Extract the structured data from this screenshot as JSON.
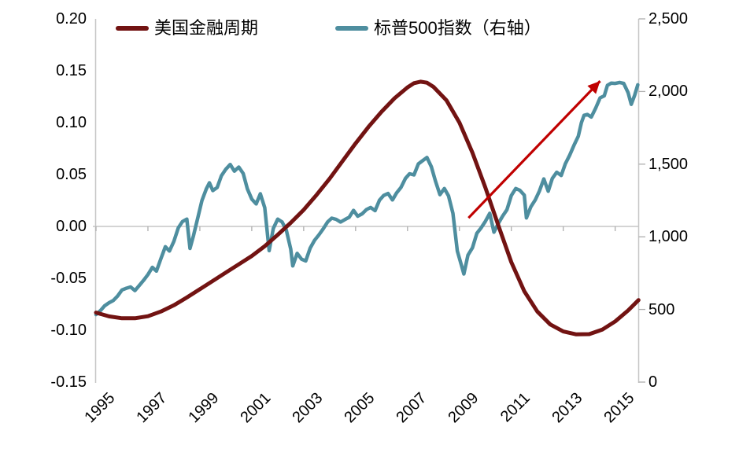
{
  "legend": {
    "position": "top",
    "series": [
      {
        "label": "美国金融周期",
        "color": "#721312"
      },
      {
        "label": "标普500指数（右轴）",
        "color": "#4E8E9F"
      }
    ]
  },
  "colors": {
    "background": "#ffffff",
    "axis_line": "#c6c6c6",
    "tick_mark": "#aeaeae",
    "text": "#000000",
    "financial_cycle_line": "#721312",
    "sp500_line": "#4E8E9F",
    "trend_arrow": "#C00000"
  },
  "chart_data": {
    "type": "line",
    "title": "",
    "xlabel": "",
    "ylabel_left": "",
    "ylabel_right": "",
    "grid": false,
    "x_axis": {
      "range": [
        1995,
        2015.92
      ],
      "tick_years": [
        1995,
        1997,
        1999,
        2001,
        2003,
        2005,
        2007,
        2009,
        2011,
        2013,
        2015
      ],
      "tick_labels": [
        "1995",
        "1997",
        "1999",
        "2001",
        "2003",
        "2005",
        "2007",
        "2009",
        "2011",
        "2013",
        "2015"
      ]
    },
    "y_left": {
      "range": [
        -0.15,
        0.2
      ],
      "tick_values": [
        0.2,
        0.15,
        0.1,
        0.05,
        0.0,
        -0.05,
        -0.1,
        -0.15
      ],
      "tick_labels": [
        "0.20",
        "0.15",
        "0.10",
        "0.05",
        "0.00",
        "-0.05",
        "-0.10",
        "-0.15"
      ],
      "zero_line": true
    },
    "y_right": {
      "range": [
        0,
        2500
      ],
      "tick_values": [
        2500,
        2000,
        1500,
        1000,
        500,
        0
      ],
      "tick_labels": [
        "2,500",
        "2,000",
        "1,500",
        "1,000",
        "500",
        "0"
      ]
    },
    "series": [
      {
        "name": "美国金融周期",
        "axis": "left",
        "color": "#721312",
        "line_width": 5,
        "points": [
          [
            1995.0,
            -0.083
          ],
          [
            1995.5,
            -0.0867
          ],
          [
            1996.0,
            -0.0885
          ],
          [
            1996.5,
            -0.0885
          ],
          [
            1997.0,
            -0.0865
          ],
          [
            1997.5,
            -0.082
          ],
          [
            1998.0,
            -0.076
          ],
          [
            1998.5,
            -0.0685
          ],
          [
            1999.0,
            -0.0605
          ],
          [
            1999.5,
            -0.0525
          ],
          [
            2000.0,
            -0.0445
          ],
          [
            2000.5,
            -0.0365
          ],
          [
            2001.0,
            -0.0285
          ],
          [
            2001.5,
            -0.019
          ],
          [
            2002.0,
            -0.008
          ],
          [
            2002.5,
            0.0035
          ],
          [
            2003.0,
            0.016
          ],
          [
            2003.5,
            0.0305
          ],
          [
            2004.0,
            0.046
          ],
          [
            2004.5,
            0.063
          ],
          [
            2005.0,
            0.08
          ],
          [
            2005.5,
            0.096
          ],
          [
            2006.0,
            0.1105
          ],
          [
            2006.5,
            0.1235
          ],
          [
            2007.0,
            0.134
          ],
          [
            2007.25,
            0.138
          ],
          [
            2007.5,
            0.1395
          ],
          [
            2007.75,
            0.1385
          ],
          [
            2008.0,
            0.1345
          ],
          [
            2008.5,
            0.1215
          ],
          [
            2009.0,
            0.1
          ],
          [
            2009.5,
            0.071
          ],
          [
            2010.0,
            0.0375
          ],
          [
            2010.5,
            0.001
          ],
          [
            2011.0,
            -0.0345
          ],
          [
            2011.5,
            -0.0625
          ],
          [
            2012.0,
            -0.082
          ],
          [
            2012.5,
            -0.0945
          ],
          [
            2013.0,
            -0.1012
          ],
          [
            2013.5,
            -0.104
          ],
          [
            2014.0,
            -0.1038
          ],
          [
            2014.5,
            -0.0995
          ],
          [
            2015.0,
            -0.0915
          ],
          [
            2015.5,
            -0.081
          ],
          [
            2015.9,
            -0.071
          ]
        ]
      },
      {
        "name": "标普500指数（右轴）",
        "axis": "right",
        "color": "#4E8E9F",
        "line_width": 4.5,
        "points": [
          [
            1995.0,
            465
          ],
          [
            1995.17,
            492
          ],
          [
            1995.33,
            525
          ],
          [
            1995.5,
            546
          ],
          [
            1995.67,
            562
          ],
          [
            1995.83,
            592
          ],
          [
            1996.0,
            634
          ],
          [
            1996.17,
            646
          ],
          [
            1996.33,
            655
          ],
          [
            1996.5,
            630
          ],
          [
            1996.67,
            666
          ],
          [
            1996.83,
            700
          ],
          [
            1997.0,
            740
          ],
          [
            1997.17,
            790
          ],
          [
            1997.33,
            764
          ],
          [
            1997.5,
            850
          ],
          [
            1997.67,
            932
          ],
          [
            1997.83,
            902
          ],
          [
            1998.0,
            968
          ],
          [
            1998.17,
            1062
          ],
          [
            1998.33,
            1105
          ],
          [
            1998.5,
            1122
          ],
          [
            1998.62,
            920
          ],
          [
            1998.75,
            1005
          ],
          [
            1998.92,
            1130
          ],
          [
            1999.08,
            1250
          ],
          [
            1999.25,
            1330
          ],
          [
            1999.37,
            1372
          ],
          [
            1999.5,
            1318
          ],
          [
            1999.67,
            1340
          ],
          [
            1999.83,
            1420
          ],
          [
            2000.0,
            1465
          ],
          [
            2000.17,
            1498
          ],
          [
            2000.33,
            1452
          ],
          [
            2000.5,
            1480
          ],
          [
            2000.67,
            1436
          ],
          [
            2000.83,
            1330
          ],
          [
            2001.0,
            1260
          ],
          [
            2001.17,
            1226
          ],
          [
            2001.33,
            1296
          ],
          [
            2001.5,
            1200
          ],
          [
            2001.67,
            905
          ],
          [
            2001.83,
            1058
          ],
          [
            2002.0,
            1122
          ],
          [
            2002.17,
            1102
          ],
          [
            2002.33,
            1046
          ],
          [
            2002.5,
            916
          ],
          [
            2002.58,
            800
          ],
          [
            2002.75,
            886
          ],
          [
            2002.92,
            846
          ],
          [
            2003.08,
            834
          ],
          [
            2003.25,
            922
          ],
          [
            2003.42,
            976
          ],
          [
            2003.58,
            1012
          ],
          [
            2003.75,
            1054
          ],
          [
            2003.92,
            1102
          ],
          [
            2004.08,
            1128
          ],
          [
            2004.25,
            1120
          ],
          [
            2004.42,
            1102
          ],
          [
            2004.58,
            1118
          ],
          [
            2004.75,
            1134
          ],
          [
            2004.92,
            1182
          ],
          [
            2005.08,
            1142
          ],
          [
            2005.25,
            1158
          ],
          [
            2005.42,
            1188
          ],
          [
            2005.58,
            1202
          ],
          [
            2005.75,
            1180
          ],
          [
            2005.92,
            1252
          ],
          [
            2006.08,
            1284
          ],
          [
            2006.25,
            1298
          ],
          [
            2006.42,
            1254
          ],
          [
            2006.58,
            1302
          ],
          [
            2006.75,
            1340
          ],
          [
            2006.92,
            1402
          ],
          [
            2007.08,
            1434
          ],
          [
            2007.25,
            1426
          ],
          [
            2007.42,
            1502
          ],
          [
            2007.58,
            1524
          ],
          [
            2007.75,
            1546
          ],
          [
            2007.92,
            1482
          ],
          [
            2008.08,
            1382
          ],
          [
            2008.25,
            1290
          ],
          [
            2008.42,
            1332
          ],
          [
            2008.58,
            1282
          ],
          [
            2008.75,
            1162
          ],
          [
            2008.92,
            902
          ],
          [
            2009.08,
            802
          ],
          [
            2009.17,
            744
          ],
          [
            2009.33,
            874
          ],
          [
            2009.5,
            924
          ],
          [
            2009.67,
            1024
          ],
          [
            2009.83,
            1060
          ],
          [
            2010.0,
            1106
          ],
          [
            2010.17,
            1162
          ],
          [
            2010.33,
            1032
          ],
          [
            2010.5,
            1092
          ],
          [
            2010.67,
            1144
          ],
          [
            2010.83,
            1186
          ],
          [
            2011.0,
            1284
          ],
          [
            2011.17,
            1332
          ],
          [
            2011.33,
            1320
          ],
          [
            2011.5,
            1286
          ],
          [
            2011.58,
            1130
          ],
          [
            2011.75,
            1206
          ],
          [
            2011.92,
            1254
          ],
          [
            2012.08,
            1314
          ],
          [
            2012.25,
            1398
          ],
          [
            2012.42,
            1314
          ],
          [
            2012.58,
            1402
          ],
          [
            2012.75,
            1444
          ],
          [
            2012.92,
            1422
          ],
          [
            2013.08,
            1502
          ],
          [
            2013.25,
            1562
          ],
          [
            2013.42,
            1632
          ],
          [
            2013.58,
            1692
          ],
          [
            2013.7,
            1786
          ],
          [
            2013.8,
            1836
          ],
          [
            2013.93,
            1842
          ],
          [
            2014.08,
            1824
          ],
          [
            2014.25,
            1886
          ],
          [
            2014.42,
            1956
          ],
          [
            2014.58,
            1970
          ],
          [
            2014.7,
            2042
          ],
          [
            2014.85,
            2058
          ],
          [
            2015.0,
            2056
          ],
          [
            2015.17,
            2062
          ],
          [
            2015.33,
            2056
          ],
          [
            2015.5,
            1992
          ],
          [
            2015.62,
            1912
          ],
          [
            2015.75,
            1974
          ],
          [
            2015.87,
            2046
          ]
        ]
      }
    ],
    "annotation_arrow": {
      "axis": "right",
      "color": "#C00000",
      "from": [
        2009.35,
        1130
      ],
      "to": [
        2014.42,
        2072
      ]
    }
  }
}
